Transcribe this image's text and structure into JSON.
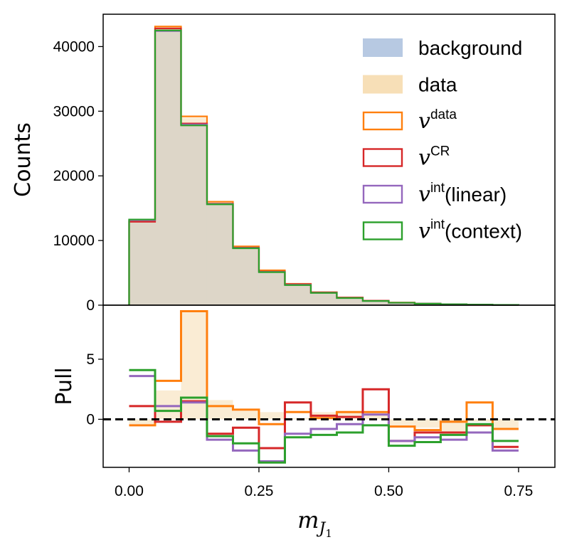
{
  "chart_data": [
    {
      "type": "histogram",
      "panel": "main",
      "ylabel": "Counts",
      "ylim": [
        0,
        45000
      ],
      "yticks": [
        0,
        10000,
        20000,
        30000,
        40000
      ],
      "bin_edges": [
        0.0,
        0.05,
        0.1,
        0.15,
        0.2,
        0.25,
        0.3,
        0.35,
        0.4,
        0.45,
        0.5,
        0.55,
        0.6,
        0.65,
        0.7,
        0.75
      ],
      "series": [
        {
          "name": "background",
          "style": "filled",
          "color": "#b7c9e2",
          "values": [
            13300,
            42300,
            27900,
            15600,
            8800,
            5100,
            3100,
            1900,
            1100,
            650,
            380,
            230,
            140,
            80,
            40
          ]
        },
        {
          "name": "data",
          "style": "filled",
          "color": "#f7dfb7",
          "values": [
            13200,
            43000,
            29000,
            15900,
            9000,
            5300,
            3200,
            1950,
            1150,
            680,
            390,
            240,
            150,
            85,
            45
          ]
        },
        {
          "name": "v^data",
          "style": "step",
          "color": "#ff7f0e",
          "values": [
            13000,
            43100,
            29200,
            16000,
            9100,
            5400,
            3300,
            2000,
            1200,
            700,
            400,
            250,
            160,
            90,
            45
          ]
        },
        {
          "name": "v^CR",
          "style": "step",
          "color": "#d62728",
          "values": [
            12900,
            42800,
            28100,
            15700,
            8900,
            5200,
            3250,
            1980,
            1170,
            690,
            385,
            235,
            150,
            85,
            42
          ]
        },
        {
          "name": "v^int(linear)",
          "style": "step",
          "color": "#9467bd",
          "values": [
            13150,
            42400,
            27950,
            15650,
            8850,
            5150,
            3150,
            1920,
            1120,
            660,
            375,
            230,
            140,
            80,
            40
          ]
        },
        {
          "name": "v^int(context)",
          "style": "step",
          "color": "#2ca02c",
          "values": [
            13250,
            42500,
            27800,
            15600,
            8800,
            5100,
            3100,
            1900,
            1100,
            650,
            380,
            230,
            140,
            80,
            40
          ]
        }
      ],
      "legend": {
        "position": "top-right",
        "entries": [
          {
            "base": "background",
            "sup": "",
            "suffix": ""
          },
          {
            "base": "data",
            "sup": "",
            "suffix": ""
          },
          {
            "base": "v",
            "sup": "data",
            "suffix": ""
          },
          {
            "base": "v",
            "sup": "CR",
            "suffix": ""
          },
          {
            "base": "v",
            "sup": "int",
            "suffix": "(linear)"
          },
          {
            "base": "v",
            "sup": "int",
            "suffix": "(context)"
          }
        ]
      }
    },
    {
      "type": "histogram",
      "panel": "pull",
      "ylabel": "Pull",
      "ylim": [
        -4,
        9.5
      ],
      "yticks": [
        0,
        5
      ],
      "xlabel": "m_J1",
      "xlim": [
        -0.05,
        0.82
      ],
      "xticks": [
        0.0,
        0.25,
        0.5,
        0.75
      ],
      "xticklabels": [
        "0.00",
        "0.25",
        "0.50",
        "0.75"
      ],
      "bin_edges": [
        0.0,
        0.05,
        0.1,
        0.15,
        0.2,
        0.25,
        0.3,
        0.35,
        0.4,
        0.45,
        0.5,
        0.55,
        0.6,
        0.65,
        0.7,
        0.75
      ],
      "reference_line": 0,
      "series": [
        {
          "name": "data",
          "style": "filled",
          "color": "#f7dfb7",
          "values": [
            -0.4,
            2.4,
            8.9,
            1.6,
            0.7,
            0.6,
            0.1,
            0.6,
            0.6,
            0.5,
            -0.5,
            -0.7,
            -1.2,
            -0.2,
            -0.8
          ]
        },
        {
          "name": "v^data",
          "style": "step",
          "color": "#ff7f0e",
          "values": [
            -0.5,
            3.2,
            9.0,
            1.1,
            0.8,
            -0.4,
            0.6,
            0.1,
            0.6,
            0.6,
            -0.6,
            -0.9,
            -0.2,
            1.4,
            -0.8
          ]
        },
        {
          "name": "v^CR",
          "style": "step",
          "color": "#d62728",
          "values": [
            1.1,
            -0.2,
            1.5,
            -1.2,
            -0.7,
            -2.4,
            1.4,
            0.3,
            0.2,
            2.5,
            -1.8,
            -1.1,
            -1.1,
            -0.5,
            -2.3
          ]
        },
        {
          "name": "v^int(linear)",
          "style": "step",
          "color": "#9467bd",
          "values": [
            3.6,
            1.1,
            1.4,
            -1.7,
            -2.6,
            -3.5,
            -1.2,
            -0.8,
            -0.4,
            0.4,
            -1.8,
            -1.5,
            -1.7,
            -1.1,
            -2.6
          ]
        },
        {
          "name": "v^int(context)",
          "style": "step",
          "color": "#2ca02c",
          "values": [
            4.1,
            0.7,
            1.8,
            -1.4,
            -2.0,
            -3.6,
            -1.5,
            -1.3,
            -1.1,
            -0.5,
            -2.2,
            -1.9,
            -1.3,
            -0.4,
            -1.8
          ]
        }
      ]
    }
  ]
}
